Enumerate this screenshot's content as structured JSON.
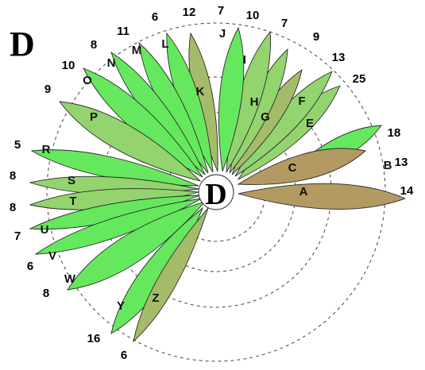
{
  "panel_label": "D",
  "hub_label": "D",
  "colors": {
    "bright_green": "#66e85e",
    "medium_green": "#93d46f",
    "olive": "#a4bc6a",
    "tan": "#b39a62",
    "outline": "#2a2a2a",
    "dashed": "#444444"
  },
  "leaves": [
    {
      "label": "A",
      "count": "14",
      "color": "tan"
    },
    {
      "label": "B",
      "count": "13",
      "color": "bright_green"
    },
    {
      "label": "C",
      "count": "18",
      "color": "tan"
    },
    {
      "label": "E",
      "count": "25",
      "color": "medium_green"
    },
    {
      "label": "F",
      "count": "13",
      "color": "medium_green"
    },
    {
      "label": "G",
      "count": "9",
      "color": "olive"
    },
    {
      "label": "H",
      "count": "7",
      "color": "medium_green"
    },
    {
      "label": "I",
      "count": "10",
      "color": "medium_green"
    },
    {
      "label": "J",
      "count": "7",
      "color": "bright_green"
    },
    {
      "label": "K",
      "count": "12",
      "color": "olive"
    },
    {
      "label": "L",
      "count": "6",
      "color": "bright_green"
    },
    {
      "label": "M",
      "count": "11",
      "color": "bright_green"
    },
    {
      "label": "N",
      "count": "8",
      "color": "bright_green"
    },
    {
      "label": "O",
      "count": "10",
      "color": "bright_green"
    },
    {
      "label": "P",
      "count": "9",
      "color": "medium_green"
    },
    {
      "label": "R",
      "count": "5",
      "color": "bright_green"
    },
    {
      "label": "S",
      "count": "8",
      "color": "medium_green"
    },
    {
      "label": "T",
      "count": "8",
      "color": "medium_green"
    },
    {
      "label": "U",
      "count": "7",
      "color": "bright_green"
    },
    {
      "label": "V",
      "count": "6",
      "color": "bright_green"
    },
    {
      "label": "W",
      "count": "8",
      "color": "bright_green"
    },
    {
      "label": "Y",
      "count": "16",
      "color": "bright_green"
    },
    {
      "label": "Z",
      "count": "6",
      "color": "olive"
    }
  ]
}
